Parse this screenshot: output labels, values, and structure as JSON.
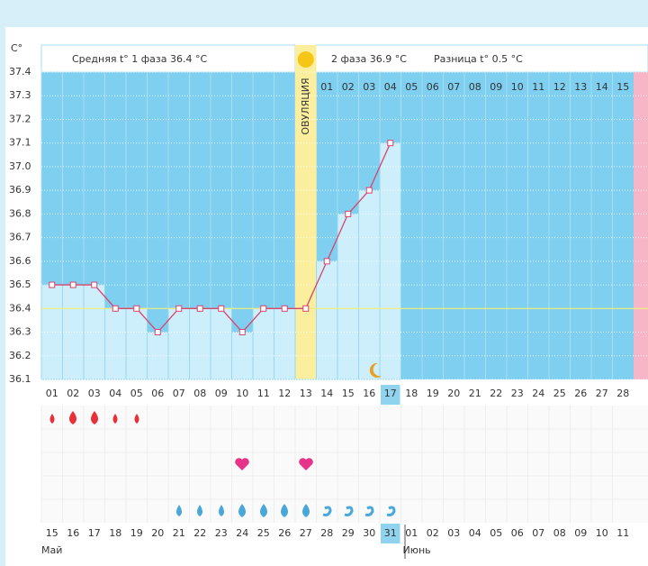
{
  "chart_data": {
    "type": "line",
    "y_unit": "C°",
    "phase1_label": "Средняя t° 1 фаза 36.4 °C",
    "phase2_label": "2 фаза 36.9 °C",
    "difference_label": "Разница t° 0.5 °C",
    "ovulation_label": "ОВУЛЯЦИЯ",
    "categories": [
      "01",
      "02",
      "03",
      "04",
      "05",
      "06",
      "07",
      "08",
      "09",
      "10",
      "11",
      "12",
      "13",
      "14",
      "15",
      "16",
      "17",
      "18",
      "19",
      "20",
      "21",
      "22",
      "23",
      "24",
      "25",
      "26",
      "27",
      "28"
    ],
    "values": [
      36.5,
      36.5,
      36.5,
      36.4,
      36.4,
      36.3,
      36.4,
      36.4,
      36.4,
      36.3,
      36.4,
      36.4,
      36.4,
      36.6,
      36.8,
      36.9,
      37.1,
      null,
      null,
      null,
      null,
      null,
      null,
      null,
      null,
      null,
      null,
      null
    ],
    "phase2_days": [
      "01",
      "02",
      "03",
      "04",
      "05",
      "06",
      "07",
      "08",
      "09",
      "10",
      "11",
      "12",
      "13",
      "14",
      "15"
    ],
    "dates": [
      "15",
      "16",
      "17",
      "18",
      "19",
      "20",
      "21",
      "22",
      "23",
      "24",
      "25",
      "26",
      "27",
      "28",
      "29",
      "30",
      "31",
      "01",
      "02",
      "03",
      "04",
      "05",
      "06",
      "07",
      "08",
      "09",
      "10",
      "11"
    ],
    "date_colors": [
      "#333",
      "#333",
      "#333",
      "#e0305c",
      "#e0305c",
      "#333",
      "#333",
      "#333",
      "#333",
      "#333",
      "#e0305c",
      "#e0305c",
      "#333",
      "#333",
      "#333",
      "#333",
      "#333",
      "#e0305c",
      "#e0305c",
      "#333",
      "#333",
      "#333",
      "#333",
      "#333",
      "#e0305c",
      "#e0305c",
      "#333",
      "#333"
    ],
    "months": [
      "Май",
      "Июнь"
    ],
    "color": "#d8456c",
    "coverline": 36.4,
    "ylim": [
      36.1,
      37.4
    ],
    "yticks": [
      37.4,
      37.3,
      37.2,
      37.1,
      {
        "value": 37,
        "label": "37.0"
      },
      36.9,
      36.8,
      36.7,
      36.6,
      36.5,
      36.4,
      36.3,
      36.2,
      36.1
    ],
    "grid": true
  }
}
